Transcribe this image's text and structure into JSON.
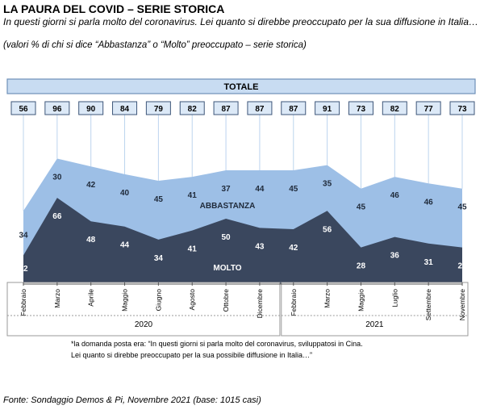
{
  "header": {
    "title": "LA PAURA DEL COVID – SERIE STORICA",
    "subtitle": "In questi giorni si parla molto del coronavirus. Lei quanto si direbbe preoccupato per la sua diffusione in Italia…",
    "note": "(valori % di chi si dice “Abbastanza” o “Molto” preoccupato – serie storica)"
  },
  "chart_data": {
    "type": "area",
    "stacked": true,
    "banner": "TOTALE",
    "categories": [
      "Febbraio",
      "Marzo",
      "Aprile",
      "Maggio",
      "Giugno",
      "Agosto",
      "Ottobre",
      "Dicembre",
      "Febbraio",
      "Marzo",
      "Maggio",
      "Luglio",
      "Settembre",
      "Novembre"
    ],
    "year_groups": [
      {
        "label": "2020",
        "count": 8
      },
      {
        "label": "2021",
        "count": 6
      }
    ],
    "totals": [
      56,
      96,
      90,
      84,
      79,
      82,
      87,
      87,
      87,
      91,
      73,
      82,
      77,
      73
    ],
    "series": [
      {
        "name": "MOLTO",
        "values": [
          22,
          66,
          48,
          44,
          34,
          41,
          50,
          43,
          42,
          56,
          28,
          36,
          31,
          28
        ],
        "color": "#3a475e"
      },
      {
        "name": "ABBASTANZA",
        "values": [
          34,
          30,
          42,
          40,
          45,
          41,
          37,
          44,
          45,
          35,
          45,
          46,
          46,
          45
        ],
        "color": "#9dbfe6"
      }
    ],
    "ylim": [
      0,
      100
    ],
    "colors": {
      "frame": "#6e8fb8",
      "box": "#dce9f7",
      "grid": "#bcd4ee"
    }
  },
  "footnote": {
    "line1": "*la domanda posta era: “In questi giorni si parla molto del coronavirus, sviluppatosi in Cina.",
    "line2": "Lei quanto si direbbe preoccupato per la sua possibile diffusione in Italia…”"
  },
  "source": "Fonte: Sondaggio Demos & Pi, Novembre 2021 (base: 1015 casi)"
}
